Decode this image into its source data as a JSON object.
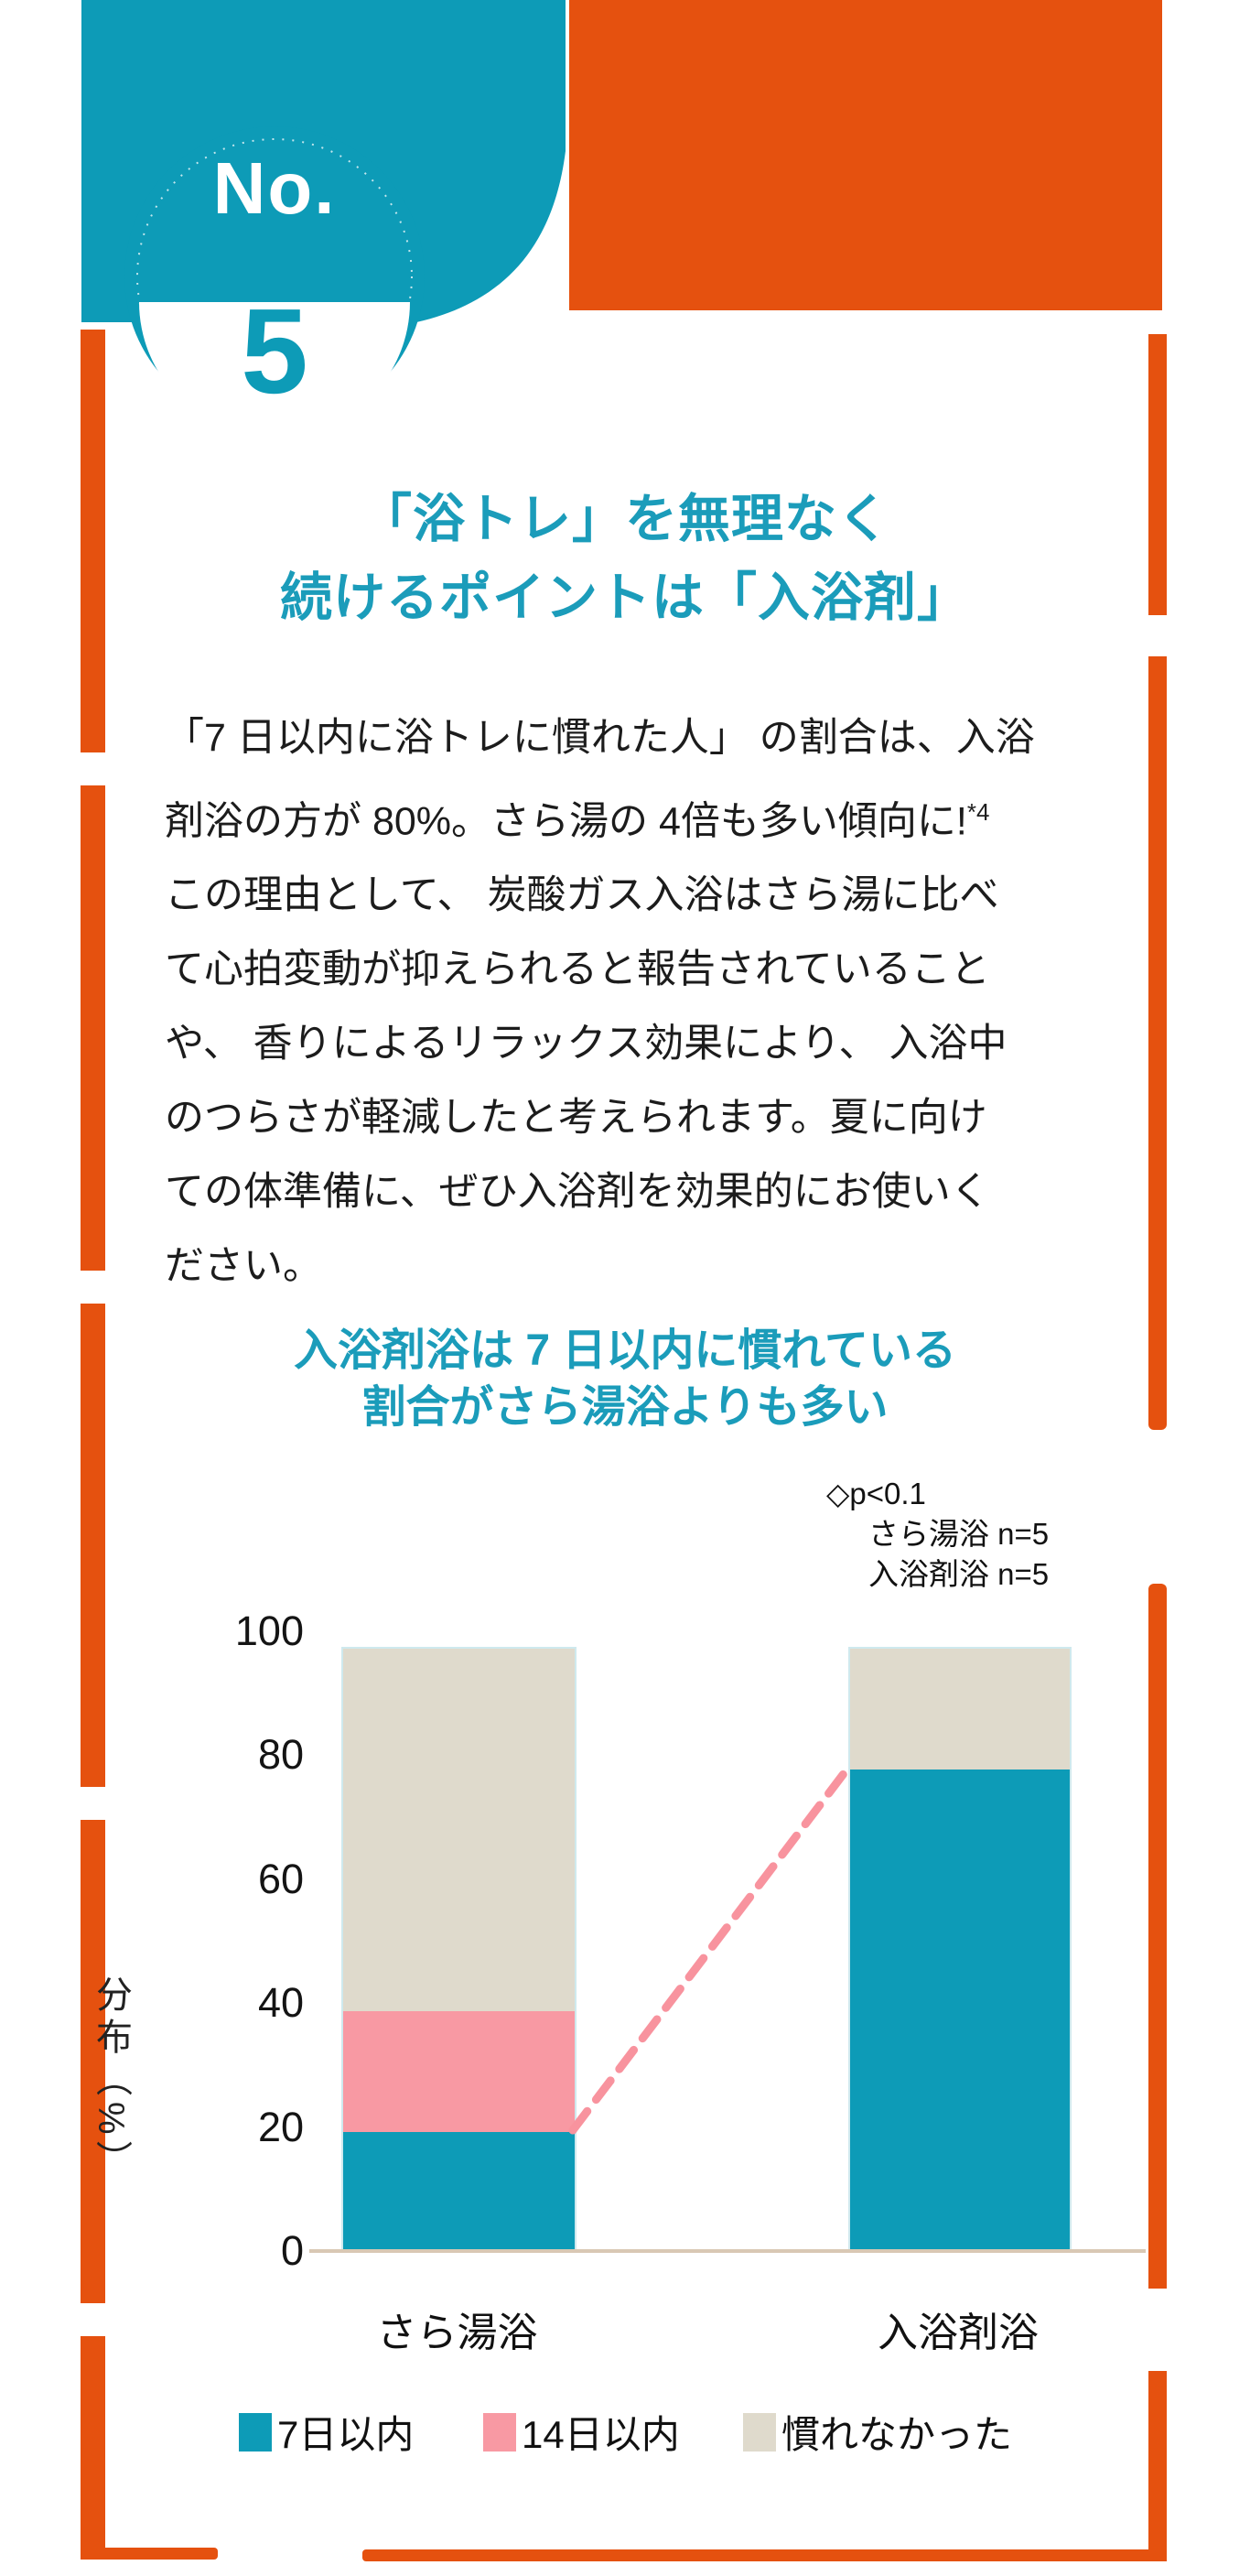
{
  "badge": {
    "prefix": "No.",
    "number": "5"
  },
  "heading": {
    "line1": "「浴トレ」を無理なく",
    "line2": "続けるポイントは「入浴剤」"
  },
  "body": {
    "lines": [
      "「7 日以内に浴トレに慣れた人」 の割合は、入浴",
      "剤浴の方が 80%。さら湯の 4倍も多い傾向に!",
      "この理由として、 炭酸ガス入浴はさら湯に比べ",
      "て心拍変動が抑えられると報告されていること",
      "や、 香りによるリラックス効果により、 入浴中",
      "のつらさが軽減したと考えられます。夏に向け",
      "ての体準備に、ぜひ入浴剤を効果的にお使いく",
      "ださい。"
    ],
    "footnote_marker": "*4"
  },
  "chart_heading": {
    "line1": "入浴剤浴は 7 日以内に慣れている",
    "line2": "割合がさら湯浴よりも多い"
  },
  "chart_data": {
    "type": "bar",
    "stacked": true,
    "title": "入浴剤浴は7日以内に慣れている割合がさら湯浴よりも多い",
    "categories": [
      "さら湯浴",
      "入浴剤浴"
    ],
    "series": [
      {
        "name": "7日以内",
        "color": "#0d9bb7",
        "values": [
          20,
          80
        ]
      },
      {
        "name": "14日以内",
        "color": "#f899a3",
        "values": [
          20,
          0
        ]
      },
      {
        "name": "慣れなかった",
        "color": "#dfdacc",
        "values": [
          60,
          20
        ]
      }
    ],
    "ylabel": "分布（%）",
    "yticks": [
      0,
      20,
      40,
      60,
      80,
      100
    ],
    "ylim": [
      0,
      100
    ],
    "grid": false,
    "legend_position": "bottom",
    "annotations": {
      "line1": "◇p<0.1",
      "line2": "さら湯浴  n=5",
      "line3": "入浴剤浴 n=5"
    },
    "dashed_connector": {
      "color": "#f8939e",
      "from_percent": 20,
      "to_percent": 80
    }
  },
  "colors": {
    "teal": "#0d9bb7",
    "heading_teal": "#1b9cba",
    "orange": "#e5510f",
    "pink": "#f899a3",
    "beige": "#dfdacc",
    "axis_tan": "#d9c8b4",
    "bar_outline": "#cfe9ee",
    "text": "#1c1c1c"
  }
}
